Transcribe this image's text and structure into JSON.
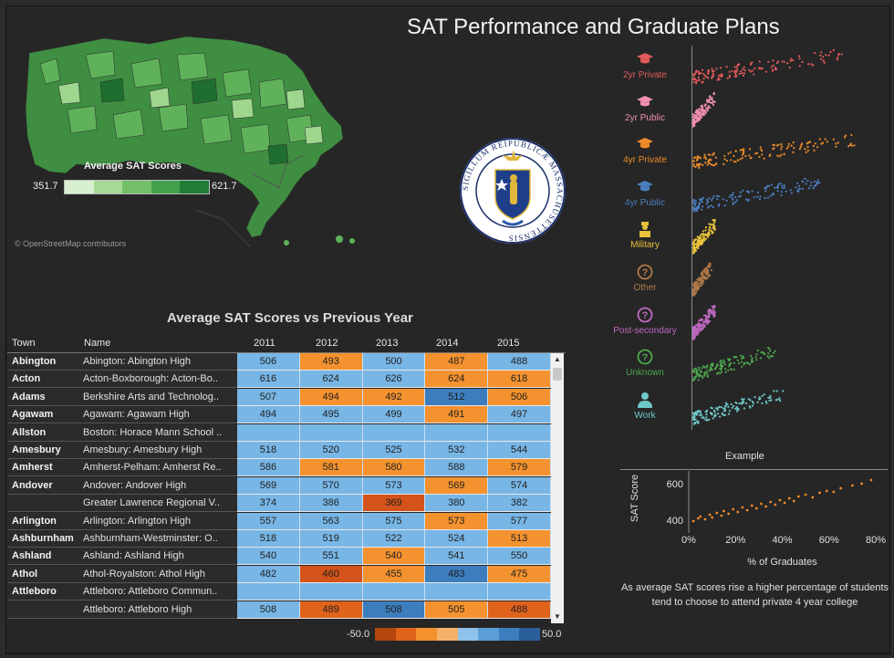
{
  "title": "SAT Performance and Graduate Plans",
  "colors": {
    "background": "#262626",
    "green_ramp": [
      "#d7efcf",
      "#a6d996",
      "#73bf67",
      "#44a04a",
      "#207d36"
    ],
    "diverging_ramp": [
      "#b5460e",
      "#e0631b",
      "#f4922f",
      "#f7b06a",
      "#8fc2ea",
      "#5c9fd6",
      "#3c7dbd",
      "#2a5f9a"
    ]
  },
  "map": {
    "legend_title": "Average SAT Scores",
    "legend_min": "351.7",
    "legend_max": "621.7",
    "credit": "© OpenStreetMap contributors"
  },
  "seal_icon": "massachusetts-seal-icon",
  "seal_text": "SIGILLUM REIPUBLICÆ MASSACHUSETTENSIS",
  "table": {
    "title": "Average SAT Scores vs Previous Year",
    "columns": [
      "Town",
      "Name",
      "2011",
      "2012",
      "2013",
      "2014",
      "2015"
    ],
    "rows": [
      {
        "town": "Abington",
        "name": "Abington: Abington High",
        "values": [
          "506",
          "493",
          "500",
          "487",
          "488"
        ],
        "colors": [
          "#78b6e6",
          "#f4922f",
          "#78b6e6",
          "#f4922f",
          "#78b6e6"
        ]
      },
      {
        "town": "Acton",
        "name": "Acton-Boxborough: Acton-Bo..",
        "values": [
          "616",
          "624",
          "626",
          "624",
          "618"
        ],
        "colors": [
          "#78b6e6",
          "#78b6e6",
          "#78b6e6",
          "#f4922f",
          "#f4922f"
        ]
      },
      {
        "town": "Adams",
        "name": "Berkshire Arts and Technolog..",
        "values": [
          "507",
          "494",
          "492",
          "512",
          "506"
        ],
        "colors": [
          "#78b6e6",
          "#f4922f",
          "#f4922f",
          "#3c7dbd",
          "#f4922f"
        ]
      },
      {
        "town": "Agawam",
        "name": "Agawam: Agawam High",
        "values": [
          "494",
          "495",
          "499",
          "491",
          "497"
        ],
        "colors": [
          "#78b6e6",
          "#78b6e6",
          "#78b6e6",
          "#f4922f",
          "#78b6e6"
        ]
      },
      {
        "town": "Allston",
        "name": "Boston: Horace Mann School ..",
        "values": [
          "",
          "",
          "",
          "",
          ""
        ],
        "colors": [
          "#78b6e6",
          "#78b6e6",
          "#78b6e6",
          "#78b6e6",
          "#78b6e6"
        ]
      },
      {
        "town": "Amesbury",
        "name": "Amesbury: Amesbury High",
        "values": [
          "518",
          "520",
          "525",
          "532",
          "544"
        ],
        "colors": [
          "#78b6e6",
          "#78b6e6",
          "#78b6e6",
          "#78b6e6",
          "#78b6e6"
        ]
      },
      {
        "town": "Amherst",
        "name": "Amherst-Pelham: Amherst Re..",
        "values": [
          "586",
          "581",
          "580",
          "588",
          "579"
        ],
        "colors": [
          "#78b6e6",
          "#f4922f",
          "#f4922f",
          "#78b6e6",
          "#f4922f"
        ]
      },
      {
        "town": "Andover",
        "name": "Andover: Andover High",
        "values": [
          "569",
          "570",
          "573",
          "569",
          "574"
        ],
        "colors": [
          "#78b6e6",
          "#78b6e6",
          "#78b6e6",
          "#f4922f",
          "#78b6e6"
        ]
      },
      {
        "town": "",
        "name": "Greater Lawrence Regional V..",
        "values": [
          "374",
          "386",
          "369",
          "380",
          "382"
        ],
        "colors": [
          "#78b6e6",
          "#78b6e6",
          "#d4531a",
          "#78b6e6",
          "#78b6e6"
        ]
      },
      {
        "town": "Arlington",
        "name": "Arlington: Arlington High",
        "values": [
          "557",
          "563",
          "575",
          "573",
          "577"
        ],
        "colors": [
          "#78b6e6",
          "#78b6e6",
          "#78b6e6",
          "#f4922f",
          "#78b6e6"
        ]
      },
      {
        "town": "Ashburnham",
        "name": "Ashburnham-Westminster: O..",
        "values": [
          "518",
          "519",
          "522",
          "524",
          "513"
        ],
        "colors": [
          "#78b6e6",
          "#78b6e6",
          "#78b6e6",
          "#78b6e6",
          "#f4922f"
        ]
      },
      {
        "town": "Ashland",
        "name": "Ashland: Ashland High",
        "values": [
          "540",
          "551",
          "540",
          "541",
          "550"
        ],
        "colors": [
          "#78b6e6",
          "#78b6e6",
          "#f4922f",
          "#78b6e6",
          "#78b6e6"
        ]
      },
      {
        "town": "Athol",
        "name": "Athol-Royalston: Athol High",
        "values": [
          "482",
          "460",
          "455",
          "483",
          "475"
        ],
        "colors": [
          "#78b6e6",
          "#d4531a",
          "#f4922f",
          "#3c7dbd",
          "#f4922f"
        ]
      },
      {
        "town": "Attleboro",
        "name": "Attleboro: Attleboro Commun..",
        "values": [
          "",
          "",
          "",
          "",
          ""
        ],
        "colors": [
          "#78b6e6",
          "#78b6e6",
          "#78b6e6",
          "#78b6e6",
          "#78b6e6"
        ]
      },
      {
        "town": "",
        "name": "Attleboro: Attleboro High",
        "values": [
          "508",
          "489",
          "508",
          "505",
          "488"
        ],
        "colors": [
          "#78b6e6",
          "#e0631b",
          "#3c7dbd",
          "#f4922f",
          "#e0631b"
        ]
      }
    ],
    "legend_min": "-50.0",
    "legend_max": "50.0"
  },
  "plans": [
    {
      "label": "2yr Private",
      "icon": "graduation-cap-icon",
      "color": "#e35a5a",
      "spread": 0.85
    },
    {
      "label": "2yr Public",
      "icon": "graduation-cap-icon",
      "color": "#f08fb0",
      "spread": 0.12
    },
    {
      "label": "4yr Private",
      "icon": "graduation-cap-icon",
      "color": "#f08c28",
      "spread": 0.9
    },
    {
      "label": "4yr Public",
      "icon": "graduation-cap-icon",
      "color": "#4c7fc0",
      "spread": 0.7
    },
    {
      "label": "Military",
      "icon": "soldier-icon",
      "color": "#e8c23a",
      "spread": 0.12
    },
    {
      "label": "Other",
      "icon": "question-circle-icon",
      "color": "#b07848",
      "spread": 0.1
    },
    {
      "label": "Post-secondary",
      "icon": "question-circle-icon",
      "color": "#c06ac0",
      "spread": 0.12
    },
    {
      "label": "Unknown",
      "icon": "question-circle-icon",
      "color": "#4ea84e",
      "spread": 0.45
    },
    {
      "label": "Work",
      "icon": "worker-icon",
      "color": "#6ec8c8",
      "spread": 0.5
    }
  ],
  "chart_data": {
    "type": "scatter",
    "title": "Example",
    "xlabel": "% of Graduates",
    "ylabel": "SAT Score",
    "xlim": [
      0,
      80
    ],
    "ylim": [
      350,
      650
    ],
    "x_ticks": [
      "0%",
      "20%",
      "40%",
      "60%",
      "80%"
    ],
    "y_ticks": [
      "600",
      "400"
    ],
    "series": [
      {
        "color": "#f08c28",
        "x": [
          2,
          4,
          5,
          7,
          9,
          10,
          12,
          14,
          15,
          17,
          19,
          21,
          23,
          25,
          27,
          29,
          31,
          33,
          35,
          37,
          39,
          41,
          43,
          45,
          47,
          50,
          53,
          56,
          59,
          62,
          65,
          70,
          74,
          78
        ],
        "y": [
          395,
          410,
          420,
          405,
          430,
          415,
          440,
          425,
          450,
          435,
          460,
          445,
          470,
          455,
          480,
          465,
          490,
          475,
          500,
          485,
          510,
          495,
          520,
          505,
          530,
          540,
          525,
          550,
          560,
          555,
          575,
          590,
          600,
          620
        ]
      }
    ]
  },
  "example_note": "As average SAT scores rise a higher percentage of students tend to choose to attend private 4 year college"
}
